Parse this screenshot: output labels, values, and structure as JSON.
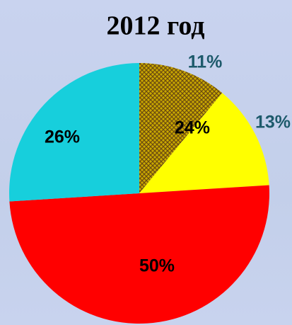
{
  "chart_data": {
    "type": "pie",
    "title": "2012 год",
    "categories": [
      null,
      null,
      null,
      null
    ],
    "values": [
      11,
      13,
      50,
      26
    ],
    "value_labels": [
      "11%",
      "13%",
      "50%",
      "26%"
    ],
    "colors": [
      "#c9a800",
      "#ffff00",
      "#ff0000",
      "#17cfdc"
    ],
    "hatch": [
      true,
      false,
      false,
      false
    ],
    "label_colors": [
      "#1d5a6b",
      "#1d5a6b",
      "#000000",
      "#000000"
    ],
    "annotation": "24%"
  }
}
